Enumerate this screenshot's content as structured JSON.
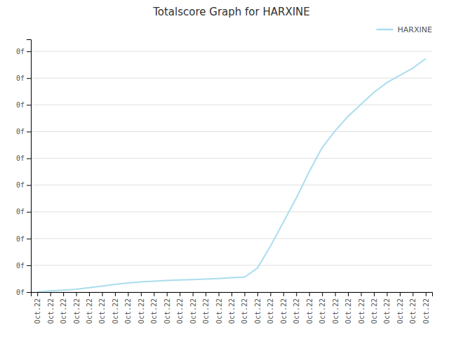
{
  "chart_data": {
    "type": "line",
    "title": "Totalscore Graph for HARXINE",
    "categories": [
      "Oct.22",
      "Oct.22",
      "Oct.22",
      "Oct.22",
      "Oct.22",
      "Oct.22",
      "Oct.22",
      "Oct.22",
      "Oct.22",
      "Oct.22",
      "Oct.22",
      "Oct.22",
      "Oct.22",
      "Oct.22",
      "Oct.22",
      "Oct.22",
      "Oct.22",
      "Oct.22",
      "Oct.22",
      "Oct.22",
      "Oct.22",
      "Oct.22",
      "Oct.22",
      "Oct.22",
      "Oct.22",
      "Oct.22",
      "Oct.22",
      "Oct.22",
      "Oct.22",
      "Oct.22",
      "Oct.22"
    ],
    "series": [
      {
        "name": "HARXINE",
        "color": "#aaddee",
        "values": [
          0.0,
          0.005,
          0.008,
          0.012,
          0.018,
          0.025,
          0.032,
          0.038,
          0.042,
          0.045,
          0.048,
          0.05,
          0.052,
          0.054,
          0.056,
          0.06,
          0.062,
          0.1,
          0.19,
          0.29,
          0.39,
          0.5,
          0.6,
          0.67,
          0.73,
          0.78,
          0.83,
          0.87,
          0.9,
          0.93,
          0.97
        ]
      }
    ],
    "ylim": [
      0,
      1.05
    ],
    "yticks": [
      {
        "value": 0,
        "label": "0f"
      },
      {
        "value": 0.1111111111111111,
        "label": "0f"
      },
      {
        "value": 0.2222222222222222,
        "label": "0f"
      },
      {
        "value": 0.3333333333333333,
        "label": "0f"
      },
      {
        "value": 0.4444444444444444,
        "label": "0f"
      },
      {
        "value": 0.5555555555555556,
        "label": "0f"
      },
      {
        "value": 0.6666666666666666,
        "label": "0f"
      },
      {
        "value": 0.7777777777777778,
        "label": "0f"
      },
      {
        "value": 0.8888888888888888,
        "label": "0f"
      },
      {
        "value": 1.0,
        "label": "0f"
      }
    ],
    "grid": true,
    "legend": "top-right"
  }
}
